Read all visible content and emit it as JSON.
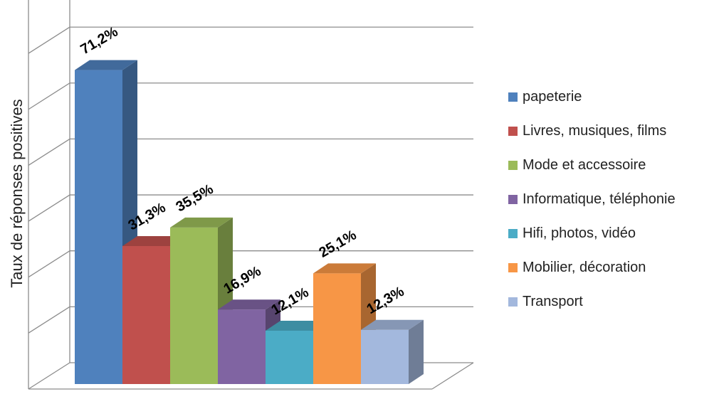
{
  "chart_data": {
    "type": "bar",
    "title": "",
    "xlabel": "",
    "ylabel": "Taux de réponses  positives",
    "ylim": [
      0,
      80
    ],
    "grid": true,
    "legend_position": "right",
    "categories": [
      "papeterie",
      "Livres, musiques, films",
      "Mode et accessoire",
      "Informatique, téléphonie",
      "Hifi, photos, vidéo",
      "Mobilier, décoration",
      "Transport"
    ],
    "values": [
      71.2,
      31.3,
      35.5,
      16.9,
      12.1,
      25.1,
      12.3
    ],
    "data_labels": [
      "71,2%",
      "31,3%",
      "35,5%",
      "16,9%",
      "12,1%",
      "25,1%",
      "12,3%"
    ],
    "colors": [
      "#4f81bd",
      "#c0504d",
      "#9bbb59",
      "#8064a2",
      "#4bacc6",
      "#f79646",
      "#a3b8dd"
    ]
  }
}
